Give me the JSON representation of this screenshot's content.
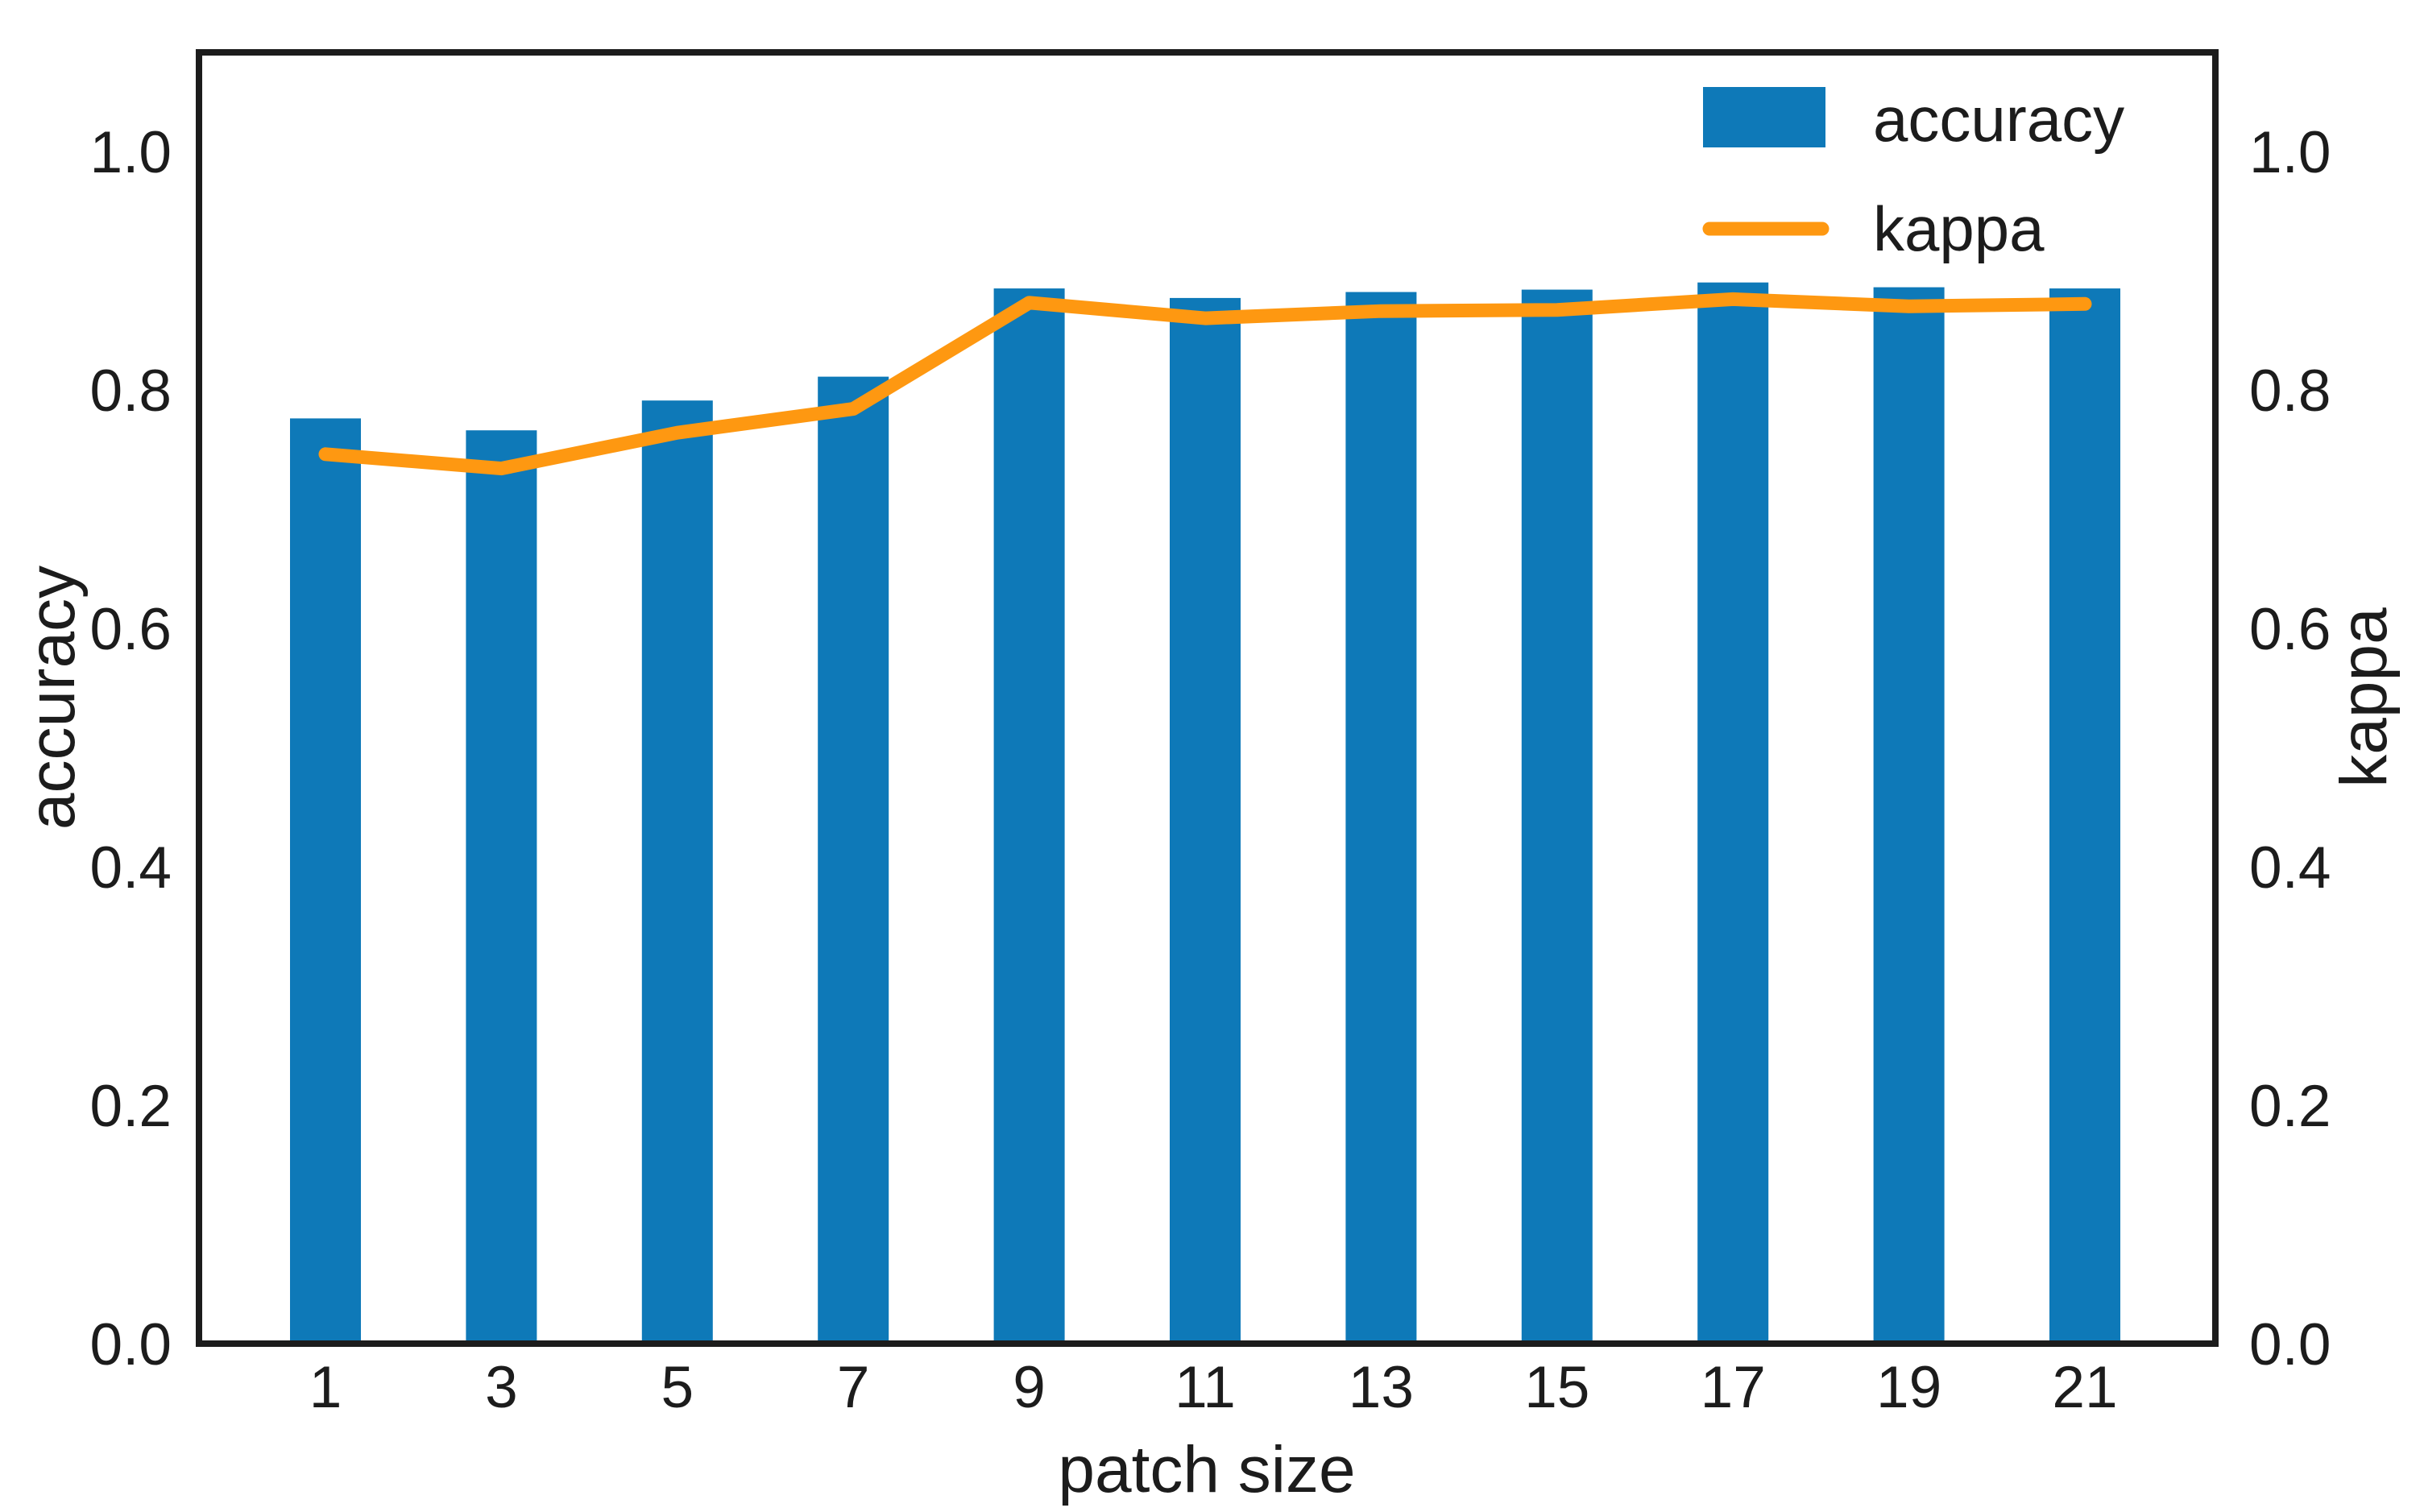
{
  "chart_data": {
    "type": "bar+line",
    "title": "",
    "xlabel": "patch size",
    "ylabel_left": "accuracy",
    "ylabel_right": "kappa",
    "categories": [
      "1",
      "3",
      "5",
      "7",
      "9",
      "11",
      "13",
      "15",
      "17",
      "19",
      "21"
    ],
    "series": [
      {
        "name": "accuracy",
        "type": "bar",
        "axis": "left",
        "color": "#0e79b8",
        "values": [
          0.776,
          0.766,
          0.791,
          0.811,
          0.885,
          0.877,
          0.882,
          0.884,
          0.89,
          0.886,
          0.885
        ]
      },
      {
        "name": "kappa",
        "type": "line",
        "axis": "right",
        "color": "#fe9811",
        "values": [
          0.746,
          0.734,
          0.764,
          0.784,
          0.873,
          0.86,
          0.866,
          0.867,
          0.876,
          0.87,
          0.872
        ]
      }
    ],
    "yticks_left": [
      "0.0",
      "0.2",
      "0.4",
      "0.6",
      "0.8",
      "1.0"
    ],
    "yticks_right": [
      "0.0",
      "0.2",
      "0.4",
      "0.6",
      "0.8",
      "1.0"
    ],
    "ylim": [
      0,
      1.083
    ],
    "grid": false,
    "legend": {
      "position": "upper right",
      "frame": false,
      "entries": [
        {
          "label": "accuracy",
          "marker": "square"
        },
        {
          "label": "kappa",
          "marker": "line"
        }
      ]
    }
  },
  "styles": {
    "text_color": "#1c1c1c",
    "spine_color": "#1c1c1c",
    "background": "#ffffff"
  }
}
